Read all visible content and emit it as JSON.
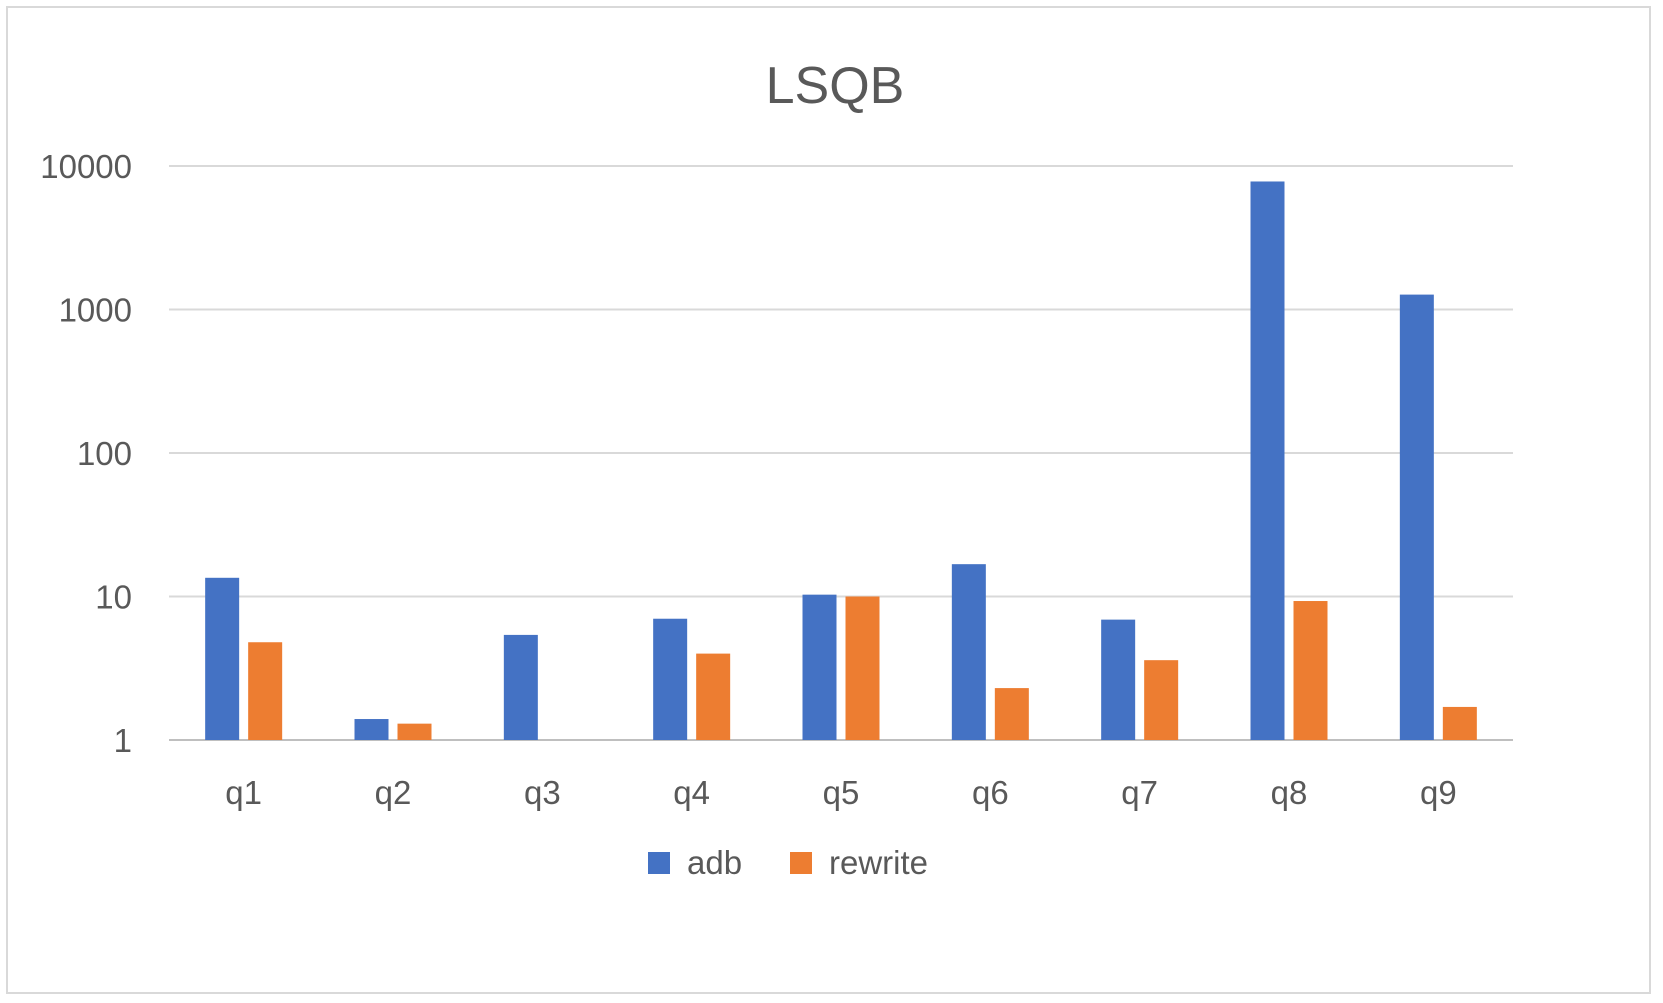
{
  "chart_data": {
    "type": "bar",
    "title": "LSQB",
    "xlabel": "",
    "ylabel": "",
    "y_scale": "log",
    "ylim": [
      1,
      10000
    ],
    "yticks": [
      "1",
      "10",
      "100",
      "1000",
      "10000"
    ],
    "ytick_values": [
      1,
      10,
      100,
      1000,
      10000
    ],
    "categories": [
      "q1",
      "q2",
      "q3",
      "q4",
      "q5",
      "q6",
      "q7",
      "q8",
      "q9"
    ],
    "series": [
      {
        "name": "adb",
        "color": "#4472C4",
        "values": [
          13.5,
          1.4,
          5.4,
          7.0,
          10.3,
          16.8,
          6.9,
          7800,
          1270
        ]
      },
      {
        "name": "rewrite",
        "color": "#ED7D31",
        "values": [
          4.8,
          1.3,
          null,
          4.0,
          10.0,
          2.3,
          3.6,
          9.3,
          1.7
        ]
      }
    ],
    "grid": true,
    "legend_position": "bottom"
  }
}
